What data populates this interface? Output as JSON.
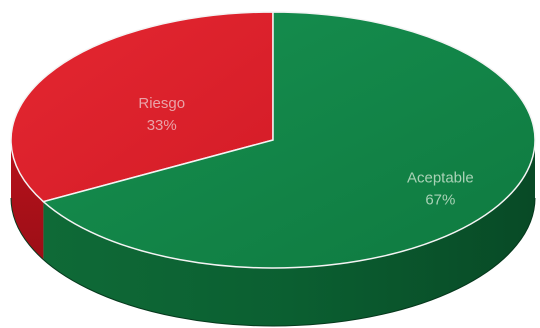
{
  "chart_data": {
    "type": "pie",
    "style": "3d",
    "categories": [
      "Riesgo",
      "Aceptable"
    ],
    "values": [
      33,
      67
    ],
    "labels": [
      {
        "name": "Riesgo",
        "percent": "33%"
      },
      {
        "name": "Aceptable",
        "percent": "67%"
      }
    ],
    "colors": {
      "Riesgo": "#e0222d",
      "Aceptable": "#128146"
    },
    "legend": "none"
  }
}
